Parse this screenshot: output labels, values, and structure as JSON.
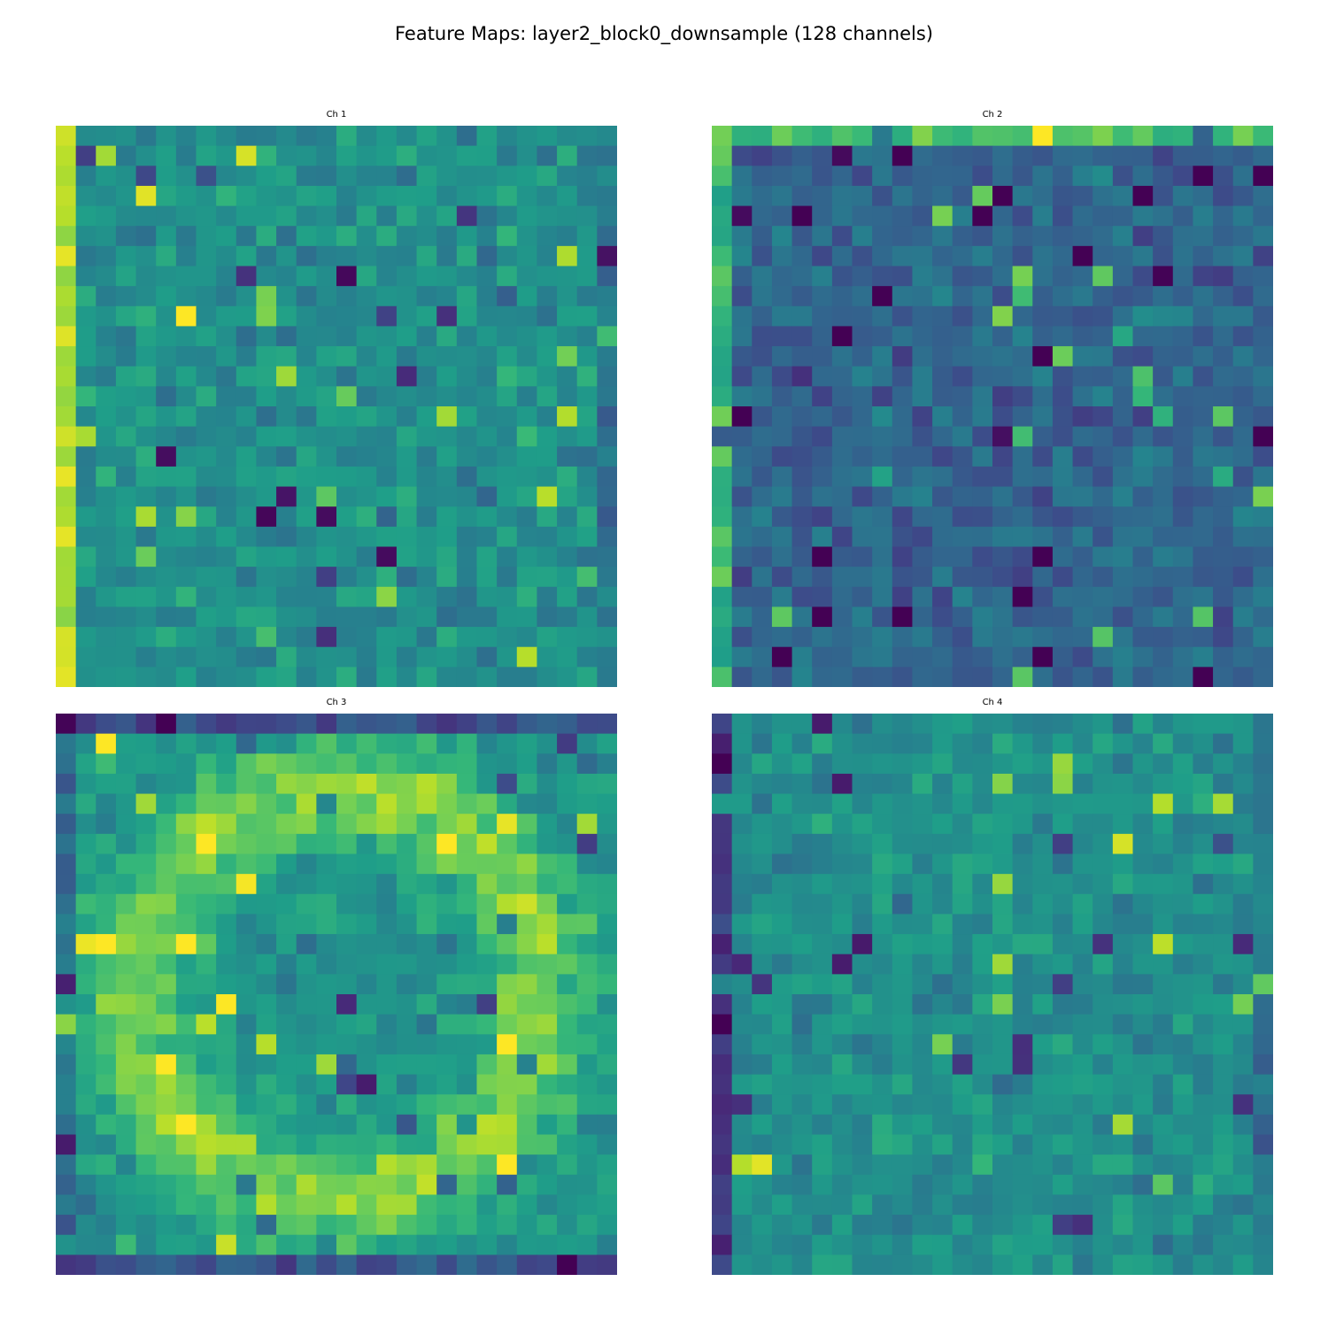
{
  "figure": {
    "title": "Feature Maps: layer2_block0_downsample (128 channels)"
  },
  "colors": {
    "colormap": "viridis",
    "stops": [
      "#440154",
      "#482878",
      "#3e4989",
      "#31688e",
      "#26828e",
      "#1f9e89",
      "#35b779",
      "#6ece58",
      "#b5de2b",
      "#fde725"
    ]
  },
  "chart_data": [
    {
      "type": "heatmap",
      "title": "Ch 1",
      "grid": false,
      "axes": "off",
      "rows": 28,
      "cols": 28,
      "seed": 11,
      "pattern": "bright-left-edge",
      "value_range": [
        0,
        1
      ]
    },
    {
      "type": "heatmap",
      "title": "Ch 2",
      "grid": false,
      "axes": "off",
      "rows": 28,
      "cols": 28,
      "seed": 23,
      "pattern": "mostly-dark",
      "value_range": [
        0,
        1
      ]
    },
    {
      "type": "heatmap",
      "title": "Ch 3",
      "grid": false,
      "axes": "off",
      "rows": 28,
      "cols": 28,
      "seed": 37,
      "pattern": "bright-ring-dark-top-bottom",
      "value_range": [
        0,
        1
      ]
    },
    {
      "type": "heatmap",
      "title": "Ch 4",
      "grid": false,
      "axes": "off",
      "rows": 28,
      "cols": 28,
      "seed": 53,
      "pattern": "dark-left-edge",
      "value_range": [
        0,
        1
      ]
    }
  ]
}
